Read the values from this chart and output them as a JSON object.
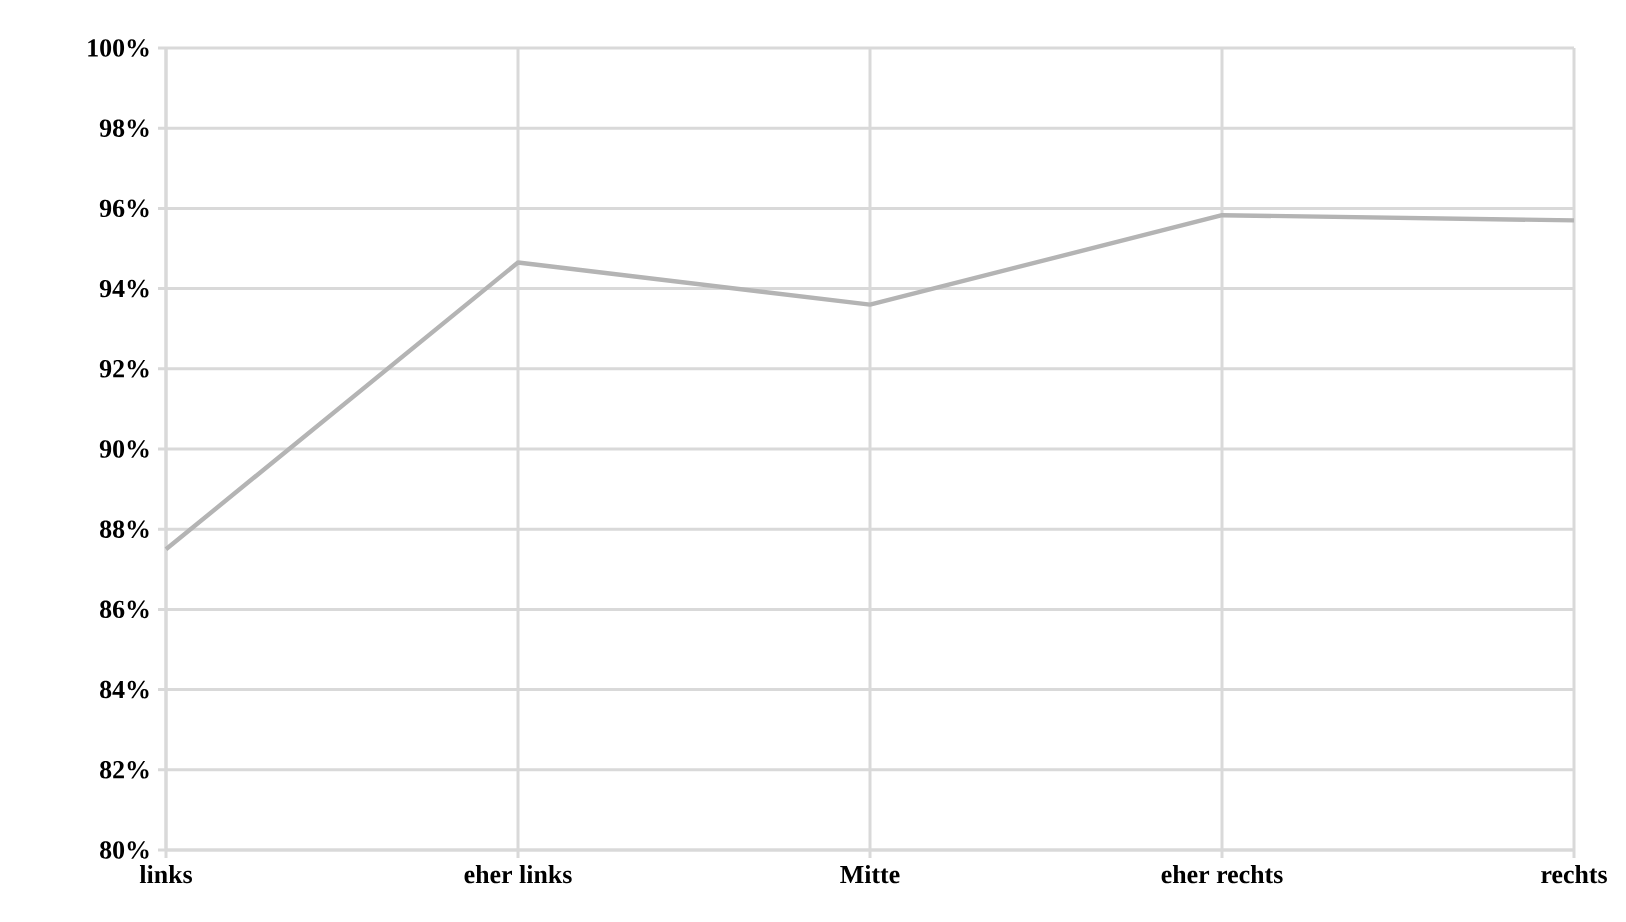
{
  "chart_data": {
    "type": "line",
    "categories": [
      "links",
      "eher links",
      "Mitte",
      "eher rechts",
      "rechts"
    ],
    "series": [
      {
        "color": "#b4b4b4",
        "values": [
          87.5,
          94.65,
          93.6,
          95.83,
          95.7
        ]
      }
    ],
    "ylim": [
      80,
      100
    ],
    "yticks": [
      {
        "value": 80,
        "label": "80%"
      },
      {
        "value": 82,
        "label": "82%"
      },
      {
        "value": 84,
        "label": "84%"
      },
      {
        "value": 86,
        "label": "86%"
      },
      {
        "value": 88,
        "label": "88%"
      },
      {
        "value": 90,
        "label": "90%"
      },
      {
        "value": 92,
        "label": "92%"
      },
      {
        "value": 94,
        "label": "94%"
      },
      {
        "value": 96,
        "label": "96%"
      },
      {
        "value": 98,
        "label": "98%"
      },
      {
        "value": 100,
        "label": "100%"
      }
    ],
    "grid": true,
    "marker": "none",
    "line_style": "solid"
  }
}
